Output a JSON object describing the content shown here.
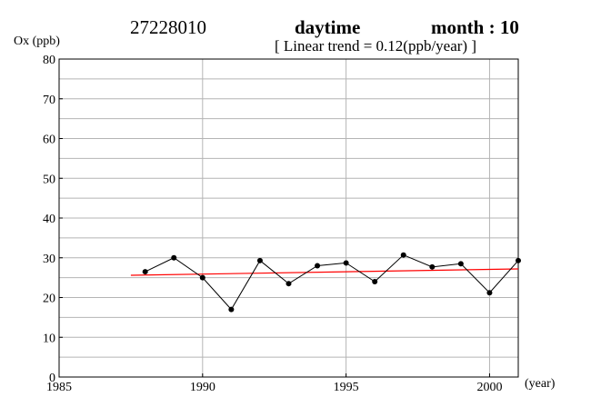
{
  "header": {
    "station": "27228010",
    "period": "daytime",
    "month": "month : 10",
    "trend": "[ Linear trend = 0.12(ppb/year) ]"
  },
  "chart_data": {
    "type": "line",
    "ylabel": "Ox (ppb)",
    "xlabel": "(year)",
    "xlim": [
      1985,
      2001
    ],
    "ylim": [
      0,
      80
    ],
    "x_ticks": [
      1985,
      1990,
      1995,
      2000
    ],
    "y_ticks": [
      0,
      10,
      20,
      30,
      40,
      50,
      60,
      70,
      80
    ],
    "grid": true,
    "series": [
      {
        "x": [
          1988,
          1989,
          1990,
          1991,
          1992,
          1993,
          1994,
          1995,
          1996,
          1997,
          1998,
          1999,
          2000,
          2001
        ],
        "y": [
          26.5,
          30.0,
          25.0,
          17.0,
          29.3,
          23.5,
          28.0,
          28.7,
          24.0,
          30.7,
          27.7,
          28.5,
          21.2,
          29.3
        ],
        "color": "#000000",
        "marker": "circle"
      }
    ],
    "trend_line": {
      "x": [
        1987.5,
        2001
      ],
      "y": [
        25.6,
        27.2
      ],
      "color": "#ff0000"
    }
  }
}
